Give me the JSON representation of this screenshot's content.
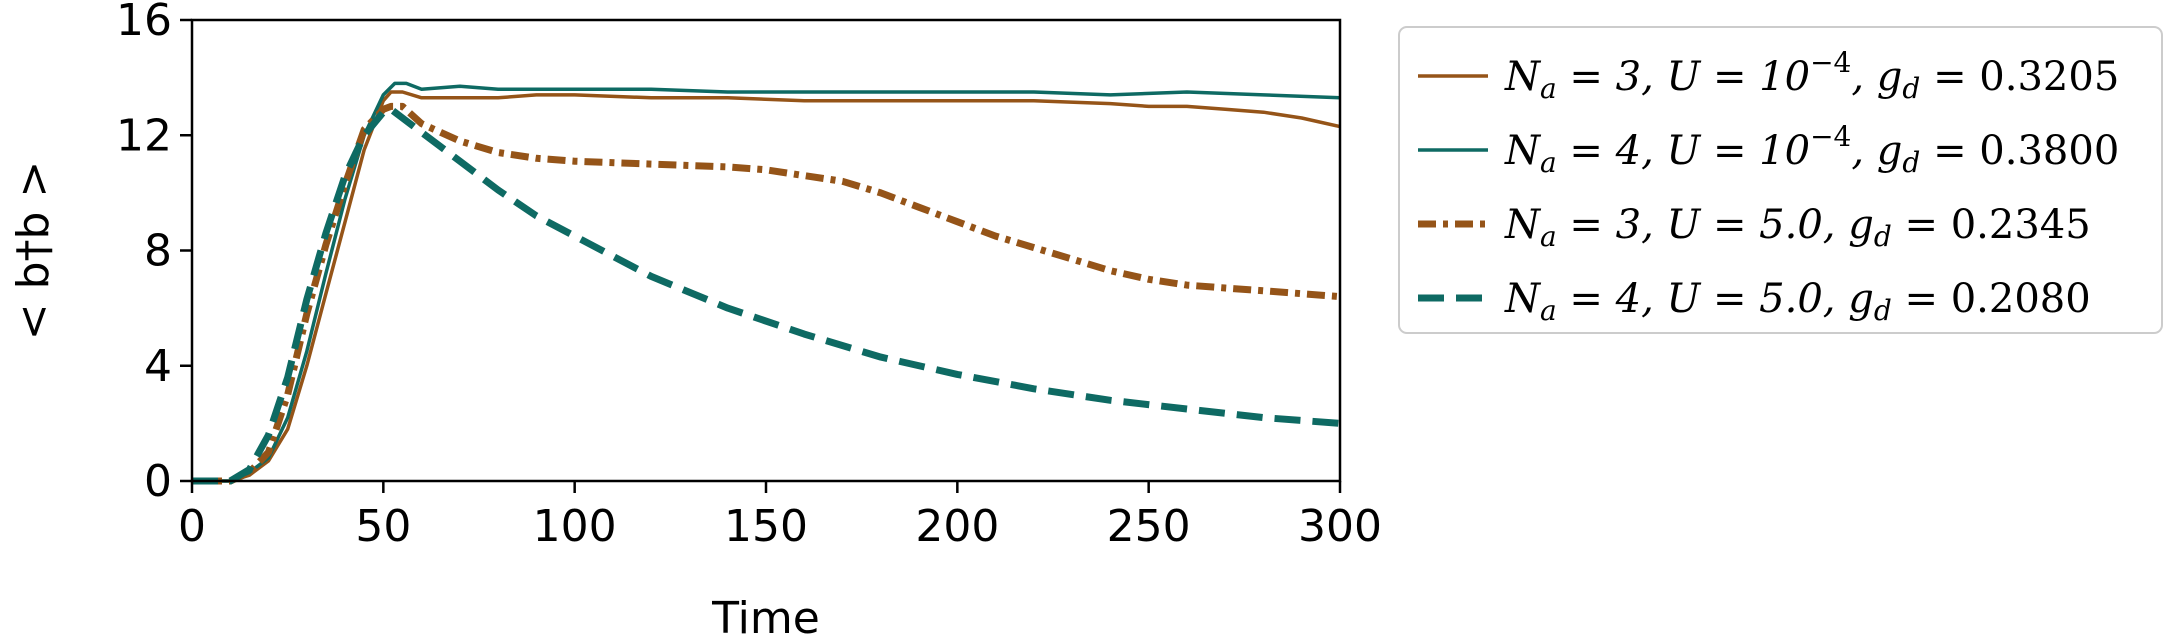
{
  "chart_data": {
    "type": "line",
    "xlabel": "Time",
    "ylabel": "< b†b >",
    "xlim": [
      0,
      300
    ],
    "ylim": [
      0,
      16
    ],
    "xticks": [
      "0",
      "50",
      "100",
      "150",
      "200",
      "250",
      "300"
    ],
    "yticks": [
      "0",
      "4",
      "8",
      "12",
      "16"
    ],
    "grid": false,
    "legend_position": "outside-right-top",
    "series": [
      {
        "name": "N_a = 3, U = 10^-4, g_d = 0.3205",
        "legend": {
          "na": "3",
          "u": "10",
          "uexp": "−4",
          "gd": "0.3205"
        },
        "color": "#955418",
        "style": "solid",
        "x": [
          0,
          10,
          15,
          20,
          25,
          30,
          35,
          40,
          45,
          50,
          52,
          55,
          60,
          70,
          80,
          90,
          100,
          120,
          140,
          160,
          180,
          200,
          220,
          240,
          250,
          260,
          270,
          280,
          290,
          300
        ],
        "y": [
          0,
          0,
          0.2,
          0.7,
          1.8,
          4.0,
          6.5,
          9.0,
          11.5,
          13.2,
          13.5,
          13.5,
          13.3,
          13.3,
          13.3,
          13.4,
          13.4,
          13.3,
          13.3,
          13.2,
          13.2,
          13.2,
          13.2,
          13.1,
          13.0,
          13.0,
          12.9,
          12.8,
          12.6,
          12.3
        ]
      },
      {
        "name": "N_a = 4, U = 10^-4, g_d = 0.3800",
        "legend": {
          "na": "4",
          "u": "10",
          "uexp": "−4",
          "gd": "0.3800"
        },
        "color": "#0e6a63",
        "style": "solid",
        "x": [
          0,
          10,
          15,
          20,
          25,
          30,
          35,
          40,
          45,
          50,
          53,
          56,
          60,
          70,
          80,
          90,
          100,
          120,
          140,
          160,
          180,
          200,
          220,
          240,
          260,
          280,
          300
        ],
        "y": [
          0,
          0,
          0.3,
          0.8,
          2.2,
          4.5,
          7.2,
          9.8,
          12.0,
          13.4,
          13.8,
          13.8,
          13.6,
          13.7,
          13.6,
          13.6,
          13.6,
          13.6,
          13.5,
          13.5,
          13.5,
          13.5,
          13.5,
          13.4,
          13.5,
          13.4,
          13.3
        ]
      },
      {
        "name": "N_a = 3, U = 5.0, g_d = 0.2345",
        "legend": {
          "na": "3",
          "u": "5.0",
          "uexp": "",
          "gd": "0.2345"
        },
        "color": "#955418",
        "style": "dashdot",
        "x": [
          0,
          10,
          15,
          20,
          25,
          30,
          35,
          40,
          45,
          50,
          52,
          55,
          60,
          70,
          80,
          90,
          100,
          120,
          140,
          150,
          160,
          170,
          180,
          190,
          200,
          210,
          220,
          230,
          240,
          250,
          260,
          270,
          280,
          290,
          300
        ],
        "y": [
          0,
          0,
          0.3,
          1.0,
          3.0,
          5.8,
          8.2,
          10.3,
          12.2,
          12.9,
          13.0,
          13.0,
          12.4,
          11.8,
          11.4,
          11.2,
          11.1,
          11.0,
          10.9,
          10.8,
          10.6,
          10.4,
          10.0,
          9.5,
          9.0,
          8.5,
          8.1,
          7.7,
          7.3,
          7.0,
          6.8,
          6.7,
          6.6,
          6.5,
          6.4
        ]
      },
      {
        "name": "N_a = 4, U = 5.0, g_d = 0.2080",
        "legend": {
          "na": "4",
          "u": "5.0",
          "uexp": "",
          "gd": "0.2080"
        },
        "color": "#0e6a63",
        "style": "dashed",
        "x": [
          0,
          10,
          15,
          20,
          25,
          30,
          35,
          40,
          45,
          50,
          52,
          55,
          60,
          70,
          80,
          90,
          100,
          120,
          140,
          160,
          180,
          200,
          220,
          240,
          260,
          280,
          300
        ],
        "y": [
          0,
          0,
          0.4,
          1.6,
          3.6,
          6.3,
          8.6,
          10.6,
          12.0,
          12.8,
          12.9,
          12.6,
          12.1,
          11.1,
          10.1,
          9.2,
          8.5,
          7.1,
          6.0,
          5.1,
          4.3,
          3.7,
          3.2,
          2.8,
          2.5,
          2.2,
          2.0
        ]
      }
    ]
  }
}
